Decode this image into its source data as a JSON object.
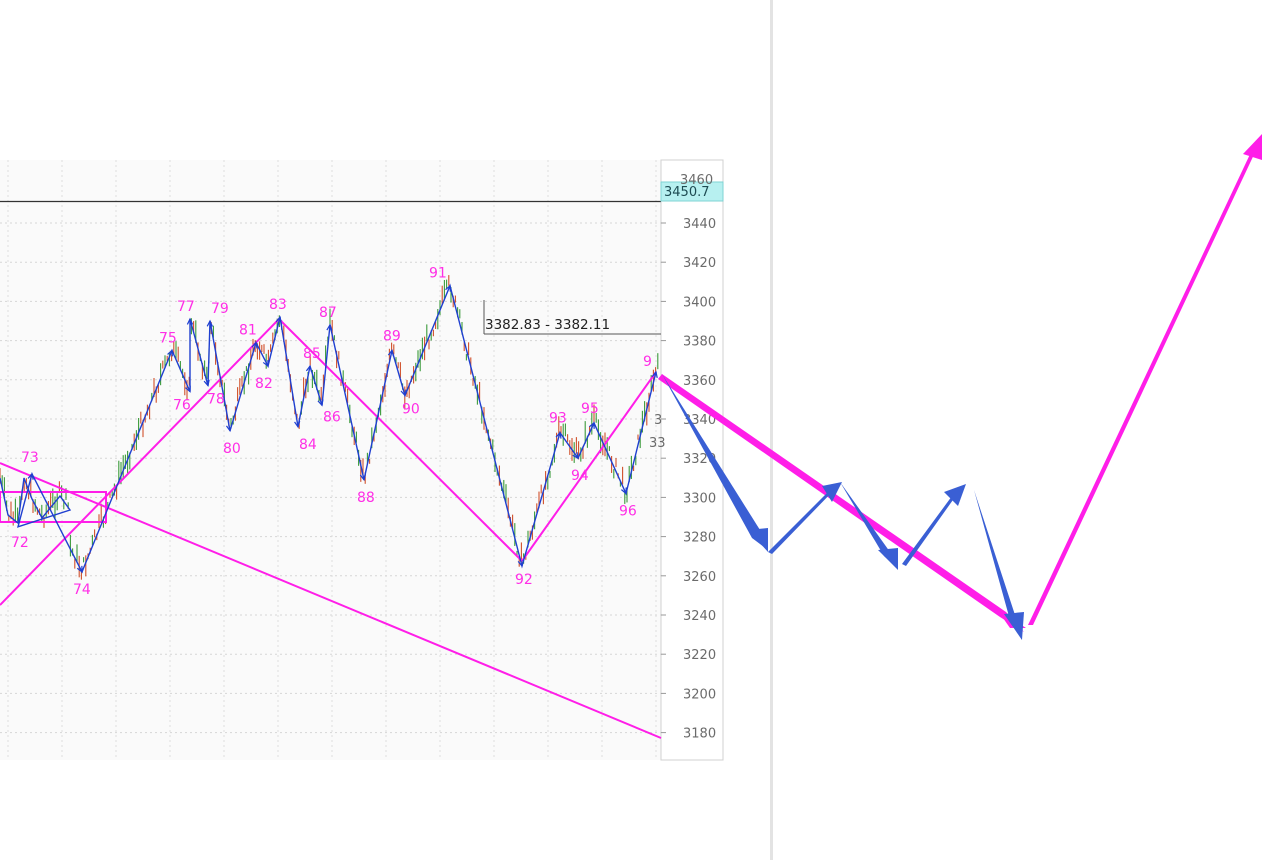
{
  "chart_data": {
    "type": "line",
    "title": "",
    "xlabel": "",
    "ylabel": "",
    "ylim": [
      3166,
      3464
    ],
    "y_ticks": [
      3440,
      3420,
      3400,
      3380,
      3360,
      3340,
      3320,
      3300,
      3280,
      3260,
      3240,
      3220,
      3200,
      3180
    ],
    "grid": true,
    "current_price_label": "3450.7",
    "current_price": 3450.7,
    "range_box_label": "3382.83 - 3382.11",
    "range_box_price": 3382,
    "partial_labels": [
      "3",
      "33"
    ],
    "wave_points": [
      {
        "label": "72",
        "price": 3285
      },
      {
        "label": "73",
        "price": 3312
      },
      {
        "label": "74",
        "price": 3262
      },
      {
        "label": "75",
        "price": 3375
      },
      {
        "label": "76",
        "price": 3354
      },
      {
        "label": "77",
        "price": 3391
      },
      {
        "label": "78",
        "price": 3357
      },
      {
        "label": "79",
        "price": 3390
      },
      {
        "label": "80",
        "price": 3334
      },
      {
        "label": "81",
        "price": 3379
      },
      {
        "label": "82",
        "price": 3367
      },
      {
        "label": "83",
        "price": 3392
      },
      {
        "label": "84",
        "price": 3336
      },
      {
        "label": "85",
        "price": 3367
      },
      {
        "label": "86",
        "price": 3347
      },
      {
        "label": "87",
        "price": 3388
      },
      {
        "label": "88",
        "price": 3309
      },
      {
        "label": "89",
        "price": 3375
      },
      {
        "label": "90",
        "price": 3352
      },
      {
        "label": "91",
        "price": 3408
      },
      {
        "label": "92",
        "price": 3265
      },
      {
        "label": "93",
        "price": 3333
      },
      {
        "label": "94",
        "price": 3320
      },
      {
        "label": "95",
        "price": 3338
      },
      {
        "label": "96",
        "price": 3302
      },
      {
        "label": "9",
        "price": 3364
      }
    ],
    "colors": {
      "wave_line": "#1f3fd0",
      "trend_line": "#ff1ee8",
      "projection_blue": "#3a5fd4",
      "projection_magenta": "#ff1ee8",
      "candle_up": "#3a9a3a",
      "candle_down": "#d0502a",
      "current_price_bg": "#b7f0f0"
    }
  }
}
